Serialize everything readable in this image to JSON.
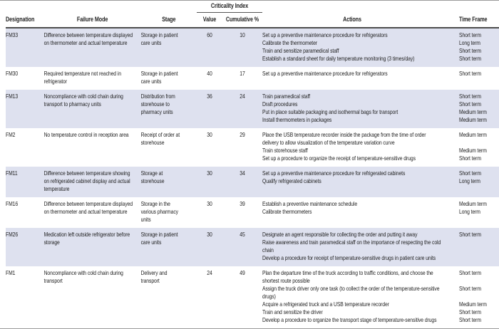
{
  "colors": {
    "row_shade": "#dee1ef",
    "header_rule": "#4d4d4d",
    "outer_rule": "#9a9a9a",
    "text": "#1f1f1f"
  },
  "table": {
    "columns": {
      "designation": "Designation",
      "failure_mode": "Failure Mode",
      "stage": "Stage",
      "criticality_index": "Criticality Index",
      "value": "Value",
      "cumulative_pct": "Cumulative %",
      "actions": "Actions",
      "time_frame": "Time Frame"
    },
    "rows": [
      {
        "designation": "FM33",
        "failure_mode": "Difference between temperature displayed on thermometer and actual temperature",
        "stage": "Storage in patient care units",
        "value": 60,
        "cumulative_pct": 10,
        "actions": [
          {
            "text": "Set up a preventive maintenance procedure for refrigerators",
            "time_frame": "Short term"
          },
          {
            "text": "Calibrate the thermometer",
            "time_frame": "Long term"
          },
          {
            "text": "Train and sensitize paramedical staff",
            "time_frame": "Short term"
          },
          {
            "text": "Establish a standard sheet for daily temperature monitoring (3 times/day)",
            "time_frame": "Short term"
          }
        ]
      },
      {
        "designation": "FM30",
        "failure_mode": "Required temperature not reached in refrigerator",
        "stage": "Storage in patient care units",
        "value": 40,
        "cumulative_pct": 17,
        "actions": [
          {
            "text": "Set up a preventive maintenance procedure for refrigerators",
            "time_frame": "Short term"
          }
        ]
      },
      {
        "designation": "FM13",
        "failure_mode": "Noncompliance with cold chain during transport to pharmacy units",
        "stage": "Distribution from storehouse to pharmacy units",
        "value": 36,
        "cumulative_pct": 24,
        "actions": [
          {
            "text": "Train paramedical staff",
            "time_frame": "Short term"
          },
          {
            "text": "Draft procedures",
            "time_frame": "Short term"
          },
          {
            "text": "Put in place suitable packaging and isothermal bags for transport",
            "time_frame": "Medium term"
          },
          {
            "text": "Install thermometers in packages",
            "time_frame": "Medium term"
          }
        ]
      },
      {
        "designation": "FM2",
        "failure_mode": "No temperature control in reception area",
        "stage": "Receipt of order at storehouse",
        "value": 30,
        "cumulative_pct": 29,
        "actions": [
          {
            "text": "Place the USB temperature recorder inside the package from the time of order delivery to allow visualization of the temperature variation curve",
            "time_frame": "Medium term"
          },
          {
            "text": "Train storehouse staff",
            "time_frame": "Medium term"
          },
          {
            "text": "Set up a procedure to organize the receipt of temperature-sensitive drugs",
            "time_frame": "Short term"
          }
        ]
      },
      {
        "designation": "FM11",
        "failure_mode": "Difference between temperature showing on refrigerated cabinet display and actual temperature",
        "stage": "Storage at storehouse",
        "value": 30,
        "cumulative_pct": 34,
        "actions": [
          {
            "text": "Set up a preventive maintenance procedure for refrigerated cabinets",
            "time_frame": "Short term"
          },
          {
            "text": "Qualify refrigerated cabinets",
            "time_frame": "Long term"
          }
        ]
      },
      {
        "designation": "FM16",
        "failure_mode": "Difference between temperature displayed on thermometer and actual temperature",
        "stage": "Storage in the various pharmacy units",
        "value": 30,
        "cumulative_pct": 39,
        "actions": [
          {
            "text": "Establish a preventive maintenance schedule",
            "time_frame": "Medium term"
          },
          {
            "text": "Calibrate thermometers",
            "time_frame": "Long term"
          }
        ]
      },
      {
        "designation": "FM26",
        "failure_mode": "Medication left outside refrigerator before storage",
        "stage": "Storage in patient care units",
        "value": 30,
        "cumulative_pct": 45,
        "actions": [
          {
            "text": "Designate an agent responsible for collecting the order and putting it away",
            "time_frame": "Short term"
          },
          {
            "text": "Raise awareness and train paramedical staff on the importance of respecting the cold chain",
            "time_frame": ""
          },
          {
            "text": "Develop a procedure for receipt of temperature-sensitive drugs in patient care units",
            "time_frame": ""
          }
        ]
      },
      {
        "designation": "FM1",
        "failure_mode": "Noncompliance with cold chain during transport",
        "stage": "Delivery and transport",
        "value": 24,
        "cumulative_pct": 49,
        "actions": [
          {
            "text": "Plan the departure time of the truck according to traffic conditions, and choose the shortest route possible",
            "time_frame": "Short term"
          },
          {
            "text": "Assign the truck driver only one task (to collect the order of the temperature-sensitive drugs)",
            "time_frame": "Short term"
          },
          {
            "text": "Acquire a refrigerated truck and a USB temperature recorder",
            "time_frame": "Medium term"
          },
          {
            "text": "Train and sensitize the driver",
            "time_frame": "Short term"
          },
          {
            "text": "Develop a procedure to organize the transport stage of temperature-sensitive drugs",
            "time_frame": "Short term"
          }
        ]
      }
    ]
  }
}
